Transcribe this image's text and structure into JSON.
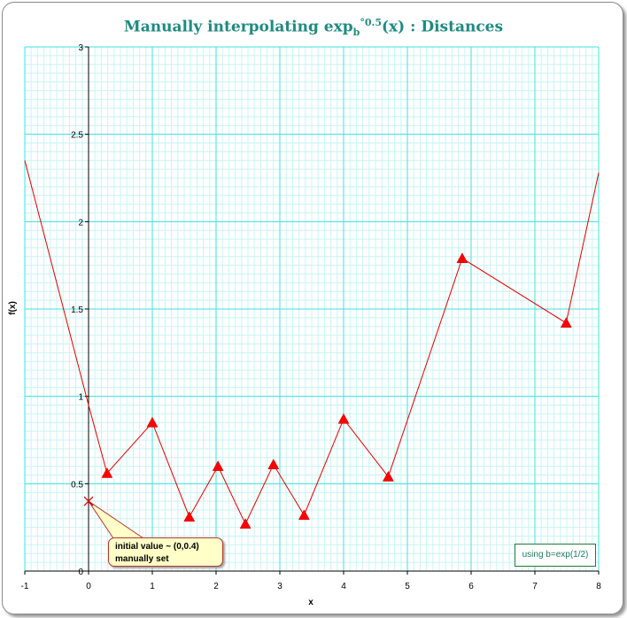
{
  "title": {
    "main": "Manually interpolating exp",
    "sub": "b",
    "sup": "°0.5",
    "tail": "(x) : Distances"
  },
  "colors": {
    "title": "#1f8a80",
    "major_grid": "#40e0e0",
    "minor_grid": "#c8f4f4",
    "series": "#e00000",
    "marker": "#ff0000"
  },
  "annotation": {
    "line1": "initial value ~ (0,0.4)",
    "line2": "manually set"
  },
  "note": "using b=exp(1/2)",
  "chart_data": {
    "type": "line",
    "title": "Manually interpolating exp_b°0.5(x) : Distances",
    "xlabel": "x",
    "ylabel": "f(x)",
    "xlim": [
      -1,
      8
    ],
    "ylim": [
      0,
      3
    ],
    "x_ticks": [
      -1,
      0,
      1,
      2,
      3,
      4,
      5,
      6,
      7,
      8
    ],
    "y_ticks": [
      0,
      0.5,
      1,
      1.5,
      2,
      2.5,
      3
    ],
    "x_tick_labels": [
      "-1",
      "0",
      "1",
      "2",
      "3",
      "4",
      "5",
      "6",
      "7",
      "8"
    ],
    "y_tick_labels": [
      "0",
      "0.5",
      "1",
      "1.5",
      "2",
      "2.5",
      "3"
    ],
    "grid": true,
    "series": [
      {
        "marker": "triangle",
        "x": [
          0.29,
          1.0,
          1.58,
          2.03,
          2.46,
          2.9,
          3.38,
          4.0,
          4.7,
          5.86,
          7.49
        ],
        "y": [
          0.56,
          0.85,
          0.31,
          0.6,
          0.27,
          0.61,
          0.32,
          0.87,
          0.54,
          1.79,
          1.42
        ]
      },
      {
        "marker": "none",
        "x": [
          -1.0,
          0.0,
          0.29
        ],
        "y": [
          2.35,
          0.95,
          0.56
        ]
      },
      {
        "marker": "none",
        "x": [
          7.49,
          8.0
        ],
        "y": [
          1.42,
          2.28
        ]
      }
    ],
    "initial_point": {
      "x": 0,
      "y": 0.4,
      "marker": "x"
    }
  }
}
